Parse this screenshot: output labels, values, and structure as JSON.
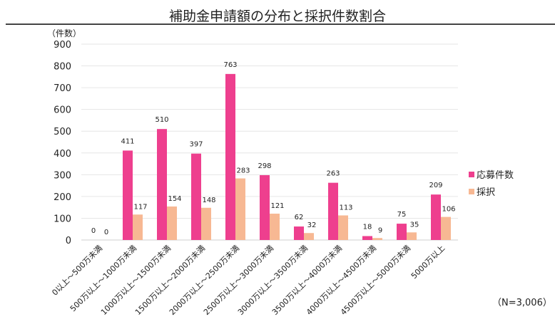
{
  "chart_data": {
    "type": "bar",
    "title": "補助金申請額の分布と採択件数割合",
    "ylabel": "（件数）",
    "ylim": [
      0,
      900
    ],
    "yticks": [
      0,
      100,
      200,
      300,
      400,
      500,
      600,
      700,
      800,
      900
    ],
    "grid": true,
    "legend_position": "right",
    "categories": [
      "0以上～500万未満",
      "500万以上～1000万未満",
      "1000万以上～1500万未満",
      "1500万以上～2000万未満",
      "2000万以上～2500万未満",
      "2500万以上～3000万未満",
      "3000万以上～3500万未満",
      "3500万以上～4000万未満",
      "4000万以上～4500万未満",
      "4500万以上～5000万未満",
      "5000万以上"
    ],
    "series": [
      {
        "name": "応募件数",
        "color": "#ee3f8e",
        "values": [
          0,
          411,
          510,
          397,
          763,
          298,
          62,
          263,
          18,
          75,
          209
        ]
      },
      {
        "name": "採択",
        "color": "#f7b893",
        "values": [
          0,
          117,
          154,
          148,
          283,
          121,
          32,
          113,
          9,
          35,
          106
        ]
      }
    ],
    "note": "（N=3,006）"
  }
}
